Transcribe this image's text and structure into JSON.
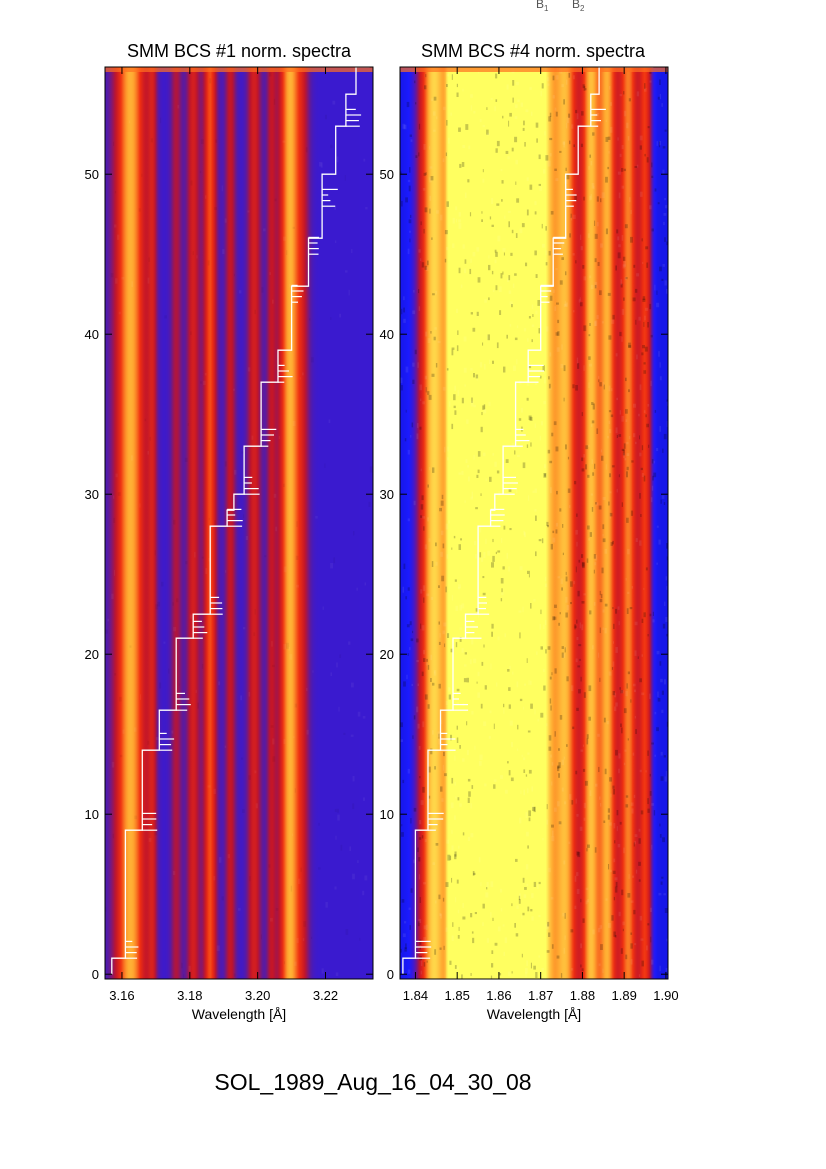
{
  "caption": "SOL_1989_Aug_16_04_30_08",
  "top_labels": [
    "B",
    "B"
  ],
  "top_label_subs": [
    "1",
    "2"
  ],
  "chart_data": [
    {
      "type": "heatmap",
      "title": "SMM BCS #1 norm. spectra",
      "xlabel": "Wavelength [Å]",
      "ylabel": "",
      "xlim": [
        3.155,
        3.234
      ],
      "ylim": [
        -0.3,
        56.7
      ],
      "xticks": [
        3.16,
        3.18,
        3.2,
        3.22
      ],
      "xtick_labels": [
        "3.16",
        "3.18",
        "3.20",
        "3.22"
      ],
      "yticks": [
        0,
        10,
        20,
        30,
        40,
        50
      ],
      "ytick_labels": [
        "0",
        "10",
        "20",
        "30",
        "40",
        "50"
      ],
      "colormap": [
        "#1a1aff",
        "#5a1aa0",
        "#c0142a",
        "#f03010",
        "#ffa830",
        "#ffff60"
      ],
      "background_level": 0.1,
      "lines": [
        {
          "x": 3.1625,
          "level": 0.72,
          "width": 0.0033
        },
        {
          "x": 3.169,
          "level": 0.3,
          "width": 0.001
        },
        {
          "x": 3.176,
          "level": 0.27,
          "width": 0.0012
        },
        {
          "x": 3.181,
          "level": 0.38,
          "width": 0.0014
        },
        {
          "x": 3.186,
          "level": 0.55,
          "width": 0.0014
        },
        {
          "x": 3.192,
          "level": 0.32,
          "width": 0.0012
        },
        {
          "x": 3.199,
          "level": 0.38,
          "width": 0.0015
        },
        {
          "x": 3.204,
          "level": 0.28,
          "width": 0.001
        },
        {
          "x": 3.2095,
          "level": 0.72,
          "width": 0.0023
        },
        {
          "x": 3.2135,
          "level": 0.2,
          "width": 0.0015
        }
      ],
      "time_trace": [
        [
          3.157,
          0
        ],
        [
          3.161,
          1
        ],
        [
          3.161,
          8
        ],
        [
          3.166,
          9
        ],
        [
          3.166,
          13
        ],
        [
          3.171,
          14
        ],
        [
          3.171,
          16
        ],
        [
          3.176,
          16.5
        ],
        [
          3.176,
          20
        ],
        [
          3.181,
          21
        ],
        [
          3.181,
          22
        ],
        [
          3.186,
          22.5
        ],
        [
          3.186,
          27
        ],
        [
          3.191,
          28
        ],
        [
          3.193,
          29
        ],
        [
          3.196,
          30
        ],
        [
          3.196,
          32
        ],
        [
          3.201,
          33
        ],
        [
          3.201,
          35
        ],
        [
          3.206,
          37
        ],
        [
          3.21,
          39
        ],
        [
          3.21,
          42
        ],
        [
          3.215,
          43
        ],
        [
          3.215,
          45
        ],
        [
          3.219,
          46
        ],
        [
          3.219,
          48
        ],
        [
          3.223,
          50
        ],
        [
          3.226,
          53
        ],
        [
          3.229,
          55
        ],
        [
          3.233,
          56.7
        ]
      ]
    },
    {
      "type": "heatmap",
      "title": "SMM BCS #4 norm. spectra",
      "xlabel": "Wavelength [Å]",
      "ylabel": "",
      "xlim": [
        1.8363,
        1.9005
      ],
      "ylim": [
        -0.3,
        56.7
      ],
      "xticks": [
        1.84,
        1.85,
        1.86,
        1.87,
        1.88,
        1.89,
        1.9
      ],
      "xtick_labels": [
        "1.84",
        "1.85",
        "1.86",
        "1.87",
        "1.88",
        "1.89",
        "1.90"
      ],
      "yticks": [
        0,
        10,
        20,
        30,
        40,
        50
      ],
      "ytick_labels": [
        "0",
        "10",
        "20",
        "30",
        "40",
        "50"
      ],
      "colormap": [
        "#000018",
        "#1a1aff",
        "#c0142a",
        "#f03010",
        "#ffa830",
        "#ffff60"
      ],
      "background_level": 0.18,
      "lines": [
        {
          "x": 1.844,
          "level": 0.55,
          "width": 0.002
        },
        {
          "x": 1.849,
          "level": 1.0,
          "width": 0.0008
        },
        {
          "x": 1.853,
          "level": 0.82,
          "width": 0.005
        },
        {
          "x": 1.859,
          "level": 0.82,
          "width": 0.004
        },
        {
          "x": 1.864,
          "level": 0.78,
          "width": 0.0035
        },
        {
          "x": 1.87,
          "level": 0.78,
          "width": 0.0025
        },
        {
          "x": 1.876,
          "level": 0.62,
          "width": 0.002
        },
        {
          "x": 1.882,
          "level": 0.65,
          "width": 0.0015
        },
        {
          "x": 1.886,
          "level": 0.62,
          "width": 0.0015
        },
        {
          "x": 1.891,
          "level": 0.55,
          "width": 0.0015
        },
        {
          "x": 1.895,
          "level": 0.42,
          "width": 0.001
        }
      ],
      "time_trace": [
        [
          1.837,
          0
        ],
        [
          1.84,
          1
        ],
        [
          1.84,
          8
        ],
        [
          1.843,
          9
        ],
        [
          1.843,
          13
        ],
        [
          1.846,
          14
        ],
        [
          1.846,
          16
        ],
        [
          1.849,
          16.5
        ],
        [
          1.849,
          20
        ],
        [
          1.852,
          21
        ],
        [
          1.852,
          22
        ],
        [
          1.855,
          22.5
        ],
        [
          1.855,
          27
        ],
        [
          1.858,
          28
        ],
        [
          1.859,
          29
        ],
        [
          1.861,
          30
        ],
        [
          1.861,
          32
        ],
        [
          1.864,
          33
        ],
        [
          1.864,
          35
        ],
        [
          1.867,
          37
        ],
        [
          1.87,
          39
        ],
        [
          1.87,
          42
        ],
        [
          1.873,
          43
        ],
        [
          1.873,
          45
        ],
        [
          1.876,
          46
        ],
        [
          1.876,
          48
        ],
        [
          1.879,
          50
        ],
        [
          1.882,
          53
        ],
        [
          1.884,
          55
        ],
        [
          1.897,
          56.7
        ]
      ]
    }
  ]
}
